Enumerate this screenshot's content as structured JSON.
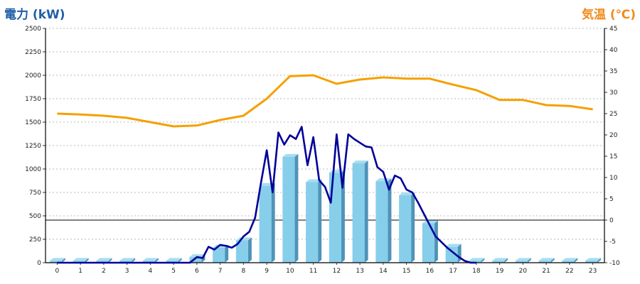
{
  "chart_data": {
    "type": "bar+line",
    "left_axis_label": "電力 (kW)",
    "right_axis_label": "気温 (℃)",
    "categories": [
      "0",
      "1",
      "2",
      "3",
      "4",
      "5",
      "6",
      "7",
      "8",
      "9",
      "10",
      "11",
      "12",
      "13",
      "14",
      "15",
      "16",
      "17",
      "18",
      "19",
      "20",
      "21",
      "22",
      "23"
    ],
    "y_left": {
      "min": 0,
      "max": 2500,
      "ticks": [
        0,
        250,
        500,
        750,
        1000,
        1250,
        1500,
        1750,
        2000,
        2250,
        2500
      ]
    },
    "y_right": {
      "min": -10,
      "max": 45,
      "ticks": [
        -10,
        -5,
        0,
        5,
        10,
        15,
        20,
        25,
        30,
        35,
        40,
        45
      ]
    },
    "bars": {
      "name": "電力 (kW)",
      "axis": "left",
      "color": "#87ceeb",
      "values": [
        20,
        20,
        20,
        20,
        20,
        20,
        60,
        160,
        240,
        820,
        1130,
        860,
        960,
        1060,
        870,
        720,
        420,
        170,
        20,
        20,
        20,
        20,
        20,
        20
      ]
    },
    "power_line": {
      "axis": "left",
      "color": "#000099",
      "x": [
        0,
        1,
        2,
        3,
        4,
        5,
        5.7,
        6,
        6.25,
        6.5,
        6.75,
        7,
        7.25,
        7.5,
        7.75,
        8,
        8.25,
        8.5,
        8.75,
        9,
        9.25,
        9.5,
        9.75,
        10,
        10.25,
        10.5,
        10.75,
        11,
        11.25,
        11.5,
        11.75,
        12,
        12.25,
        12.5,
        12.75,
        13,
        13.25,
        13.5,
        13.75,
        14,
        14.25,
        14.5,
        14.75,
        15,
        15.25,
        15.5,
        15.75,
        16,
        16.25,
        16.5,
        16.75,
        17,
        17.25,
        17.5,
        17.75,
        18
      ],
      "values": [
        0,
        0,
        0,
        0,
        0,
        0,
        0,
        60,
        50,
        170,
        140,
        190,
        180,
        160,
        200,
        280,
        330,
        480,
        850,
        1200,
        750,
        1390,
        1260,
        1360,
        1320,
        1450,
        1040,
        1340,
        880,
        810,
        640,
        1370,
        800,
        1370,
        1320,
        1280,
        1240,
        1230,
        1020,
        970,
        780,
        930,
        900,
        780,
        750,
        640,
        520,
        400,
        280,
        220,
        160,
        110,
        60,
        20,
        0,
        0
      ]
    },
    "temperature_line": {
      "name": "気温 (℃)",
      "axis": "right",
      "color": "#f5a000",
      "values": [
        25,
        24.8,
        24.5,
        24,
        23,
        22,
        22.2,
        23.5,
        24.5,
        28.5,
        33.8,
        34,
        32,
        33,
        33.5,
        33.2,
        33.2,
        31.8,
        30.5,
        28.2,
        28.2,
        27,
        26.8,
        26
      ]
    }
  }
}
